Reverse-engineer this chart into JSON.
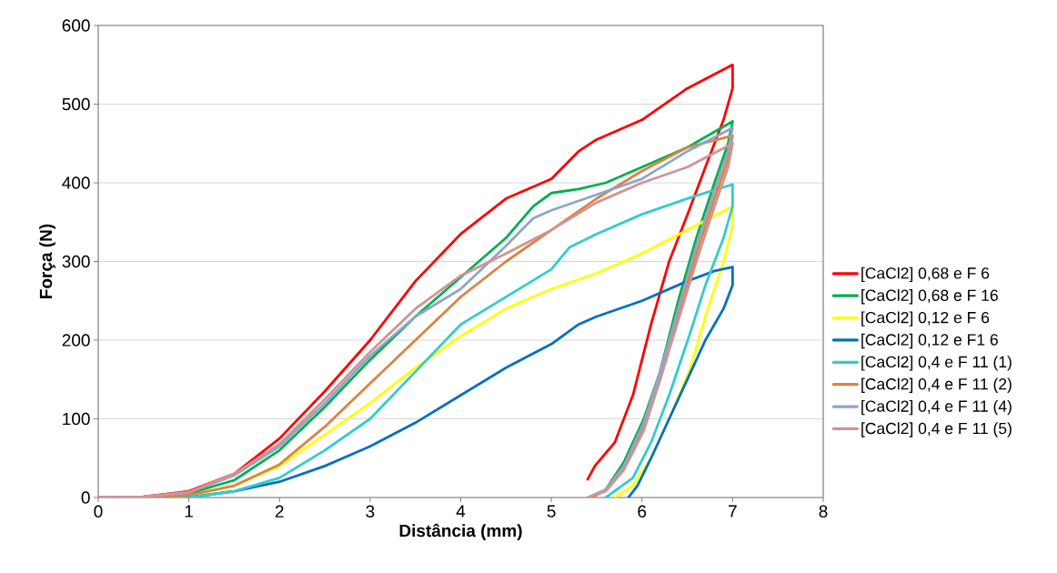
{
  "chart_data": {
    "type": "line",
    "xlabel": "Distância (mm)",
    "ylabel": "Força (N)",
    "xlim": [
      0,
      8
    ],
    "ylim": [
      0,
      600
    ],
    "xticks": [
      0,
      1,
      2,
      3,
      4,
      5,
      6,
      7,
      8
    ],
    "yticks": [
      0,
      100,
      200,
      300,
      400,
      500,
      600
    ],
    "grid": "y",
    "legend": "right",
    "marker": "none",
    "line_style": "solid",
    "series": [
      {
        "name": "[CaCl2] 0,68 e F 6",
        "color": "#ff0000",
        "x": [
          0,
          0.5,
          1,
          1.5,
          2,
          2.5,
          3,
          3.5,
          4,
          4.5,
          5,
          5.3,
          5.5,
          6,
          6.5,
          7,
          7,
          6.9,
          6.7,
          6.52,
          6.3,
          6.1,
          5.9,
          5.7,
          5.48,
          5.4
        ],
        "values": [
          0,
          1,
          8,
          30,
          75,
          135,
          200,
          275,
          335,
          380,
          405,
          440,
          455,
          480,
          520,
          550,
          520,
          480,
          420,
          365,
          300,
          220,
          130,
          70,
          40,
          23
        ]
      },
      {
        "name": "[CaCl2] 0,68 e F 16",
        "color": "#00b050",
        "x": [
          0,
          0.5,
          1,
          1.5,
          2,
          2.5,
          3,
          3.5,
          4,
          4.5,
          4.8,
          5,
          5.3,
          5.6,
          6,
          6.5,
          7,
          6.95,
          6.8,
          6.6,
          6.4,
          6.2,
          6.02,
          5.8,
          5.6,
          5.45
        ],
        "values": [
          0,
          1,
          5,
          22,
          60,
          115,
          175,
          230,
          280,
          330,
          370,
          387,
          392,
          400,
          420,
          445,
          478,
          450,
          400,
          330,
          250,
          160,
          100,
          45,
          10,
          0
        ]
      },
      {
        "name": "[CaCl2] 0,12 e F 6",
        "color": "#ffff00",
        "x": [
          0,
          0.5,
          1,
          1.5,
          2,
          2.5,
          3,
          3.5,
          4,
          4.5,
          5,
          5.5,
          6,
          6.5,
          7,
          7,
          6.9,
          6.7,
          6.52,
          6.3,
          6.1,
          5.9,
          5.7
        ],
        "values": [
          0,
          0,
          2,
          15,
          40,
          80,
          120,
          165,
          205,
          240,
          265,
          285,
          310,
          340,
          370,
          345,
          300,
          230,
          160,
          100,
          50,
          15,
          0
        ]
      },
      {
        "name": "[CaCl2] 0,12 e F1 6",
        "color": "#0070c0",
        "x": [
          0,
          0.5,
          1,
          1.5,
          2,
          2.5,
          3,
          3.5,
          4,
          4.5,
          5,
          5.3,
          5.5,
          6,
          6.5,
          6.8,
          7,
          7,
          6.9,
          6.7,
          6.52,
          6.3,
          6.1,
          5.95,
          5.85
        ],
        "values": [
          0,
          0,
          0,
          8,
          20,
          40,
          65,
          95,
          130,
          165,
          195,
          220,
          230,
          250,
          275,
          288,
          293,
          270,
          240,
          200,
          155,
          100,
          50,
          15,
          0
        ]
      },
      {
        "name": "[CaCl2] 0,4 e F 11 (1)",
        "color": "#33cccc",
        "x": [
          0,
          0.5,
          1,
          1.5,
          2,
          2.5,
          3,
          3.5,
          4,
          4.5,
          5,
          5.2,
          5.5,
          6,
          6.5,
          7,
          7,
          6.9,
          6.7,
          6.52,
          6.3,
          6.1,
          5.9,
          5.6
        ],
        "values": [
          0,
          0,
          0,
          8,
          25,
          60,
          100,
          160,
          220,
          255,
          290,
          318,
          335,
          360,
          380,
          398,
          370,
          330,
          270,
          205,
          130,
          70,
          25,
          0
        ]
      },
      {
        "name": "[CaCl2] 0,4 e F 11 (2)",
        "color": "#dd8340",
        "x": [
          0,
          0.5,
          1,
          1.5,
          2,
          2.5,
          3,
          3.5,
          4,
          4.5,
          5,
          5.5,
          6,
          6.5,
          7,
          6.95,
          6.8,
          6.6,
          6.4,
          6.2,
          6.02,
          5.8,
          5.6,
          5.45
        ],
        "values": [
          0,
          0,
          3,
          15,
          42,
          90,
          145,
          200,
          255,
          300,
          340,
          380,
          415,
          445,
          460,
          430,
          380,
          310,
          230,
          150,
          90,
          40,
          10,
          0
        ]
      },
      {
        "name": "[CaCl2] 0,4 e F 11 (4)",
        "color": "#8ea5cb",
        "x": [
          0,
          0.5,
          1,
          1.5,
          2,
          2.5,
          3,
          3.5,
          4,
          4.5,
          4.8,
          5,
          5.5,
          6,
          6.5,
          7,
          6.95,
          6.8,
          6.6,
          6.4,
          6.2,
          6.02,
          5.8,
          5.6,
          5.4
        ],
        "values": [
          0,
          1,
          6,
          28,
          65,
          120,
          180,
          230,
          265,
          320,
          355,
          365,
          385,
          405,
          440,
          470,
          440,
          390,
          320,
          240,
          160,
          95,
          40,
          10,
          0
        ]
      },
      {
        "name": "[CaCl2] 0,4 e F 11 (5)",
        "color": "#d09494",
        "x": [
          0,
          0.5,
          1,
          1.5,
          2,
          2.5,
          3,
          3.5,
          4,
          4.5,
          5,
          5.5,
          6,
          6.5,
          7,
          6.95,
          6.8,
          6.6,
          6.4,
          6.2,
          6.02,
          5.8,
          5.6,
          5.4
        ],
        "values": [
          0,
          1,
          7,
          30,
          68,
          125,
          185,
          240,
          282,
          310,
          340,
          375,
          400,
          420,
          450,
          420,
          370,
          300,
          225,
          150,
          85,
          35,
          8,
          0
        ]
      }
    ]
  }
}
